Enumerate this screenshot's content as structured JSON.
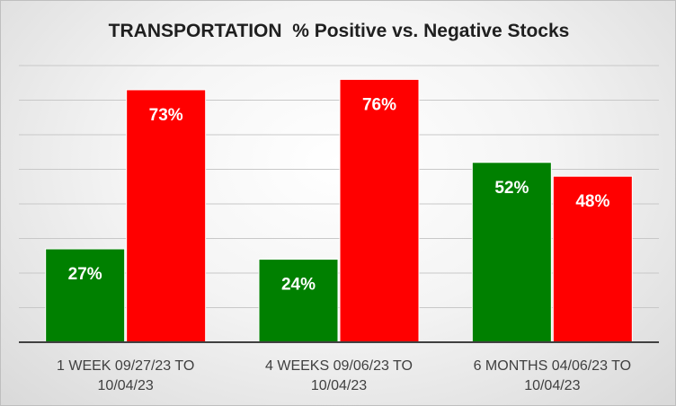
{
  "chart_data": {
    "type": "bar",
    "title": "TRANSPORTATION  % Positive vs. Negative Stocks",
    "categories": [
      [
        "1 WEEK 09/27/23 TO",
        "10/04/23"
      ],
      [
        "4 WEEKS 09/06/23 TO",
        "10/04/23"
      ],
      [
        "6 MONTHS 04/06/23 TO",
        "10/04/23"
      ]
    ],
    "series": [
      {
        "name": "Positive",
        "color": "#008000",
        "values": [
          27,
          24,
          52
        ],
        "labels": [
          "27%",
          "24%",
          "52%"
        ]
      },
      {
        "name": "Negative",
        "color": "#ff0000",
        "values": [
          73,
          76,
          48
        ],
        "labels": [
          "73%",
          "76%",
          "48%"
        ]
      }
    ],
    "ylim": [
      0,
      80
    ],
    "grid": true,
    "legend": "none",
    "xlabel": "",
    "ylabel": ""
  }
}
